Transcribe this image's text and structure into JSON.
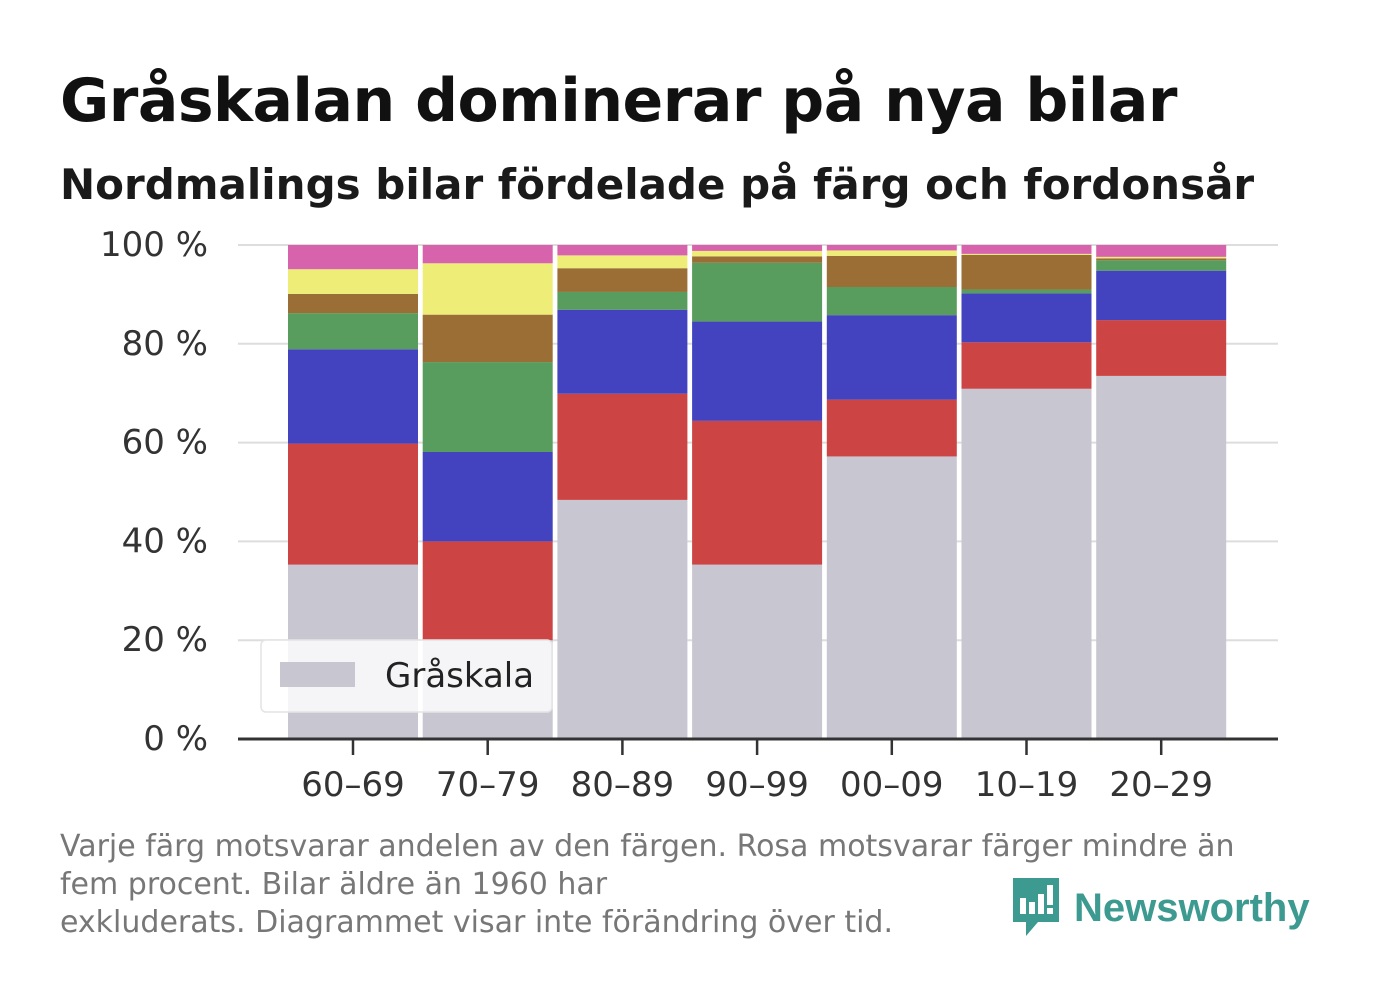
{
  "title": "Gråskalan dominerar på nya bilar",
  "subtitle": "Nordmalings bilar fördelade på färg och fordonsår",
  "footnote": {
    "line1": "Varje färg motsvarar andelen av den färgen. Rosa motsvarar färger mindre än",
    "line2": "fem procent. Bilar äldre än 1960 har",
    "line3": "exkluderats. Diagrammet visar inte förändring över tid."
  },
  "brand": {
    "name": "Newsworthy",
    "icon": "newsworthy-logo-icon",
    "color": "#3c9a91"
  },
  "chart_data": {
    "type": "bar",
    "stacked": true,
    "categories": [
      "60–69",
      "70–79",
      "80–89",
      "90–99",
      "00–09",
      "10–19",
      "20–29"
    ],
    "ylim": [
      0,
      100
    ],
    "yticks": [
      0,
      20,
      40,
      60,
      80,
      100
    ],
    "ytick_labels": [
      "0 %",
      "20 %",
      "40 %",
      "60 %",
      "80 %",
      "100 %"
    ],
    "grid": true,
    "legend": {
      "placement": "bottom-left",
      "entries": [
        "Gråskala"
      ]
    },
    "series": [
      {
        "name": "Gråskala",
        "color": "#c8c6d0",
        "values": [
          35.3,
          20.0,
          48.4,
          35.3,
          57.2,
          70.9,
          73.5
        ]
      },
      {
        "color": "#cc4444",
        "values": [
          24.5,
          20.0,
          21.5,
          29.1,
          11.5,
          9.4,
          11.3
        ]
      },
      {
        "color": "#4343bf",
        "values": [
          19.1,
          18.1,
          17.0,
          20.1,
          17.1,
          9.9,
          10.0
        ]
      },
      {
        "color": "#589c5e",
        "values": [
          7.3,
          18.2,
          3.6,
          11.9,
          5.7,
          0.8,
          2.1
        ]
      },
      {
        "color": "#9a6e35",
        "values": [
          3.9,
          9.6,
          4.8,
          1.3,
          6.3,
          7.0,
          0.4
        ]
      },
      {
        "color": "#eded77",
        "values": [
          5.0,
          10.4,
          2.6,
          1.1,
          1.1,
          0.2,
          0.3
        ]
      },
      {
        "color": "#d863ad",
        "values": [
          4.9,
          3.7,
          2.1,
          1.2,
          1.1,
          1.8,
          2.4
        ]
      }
    ]
  }
}
